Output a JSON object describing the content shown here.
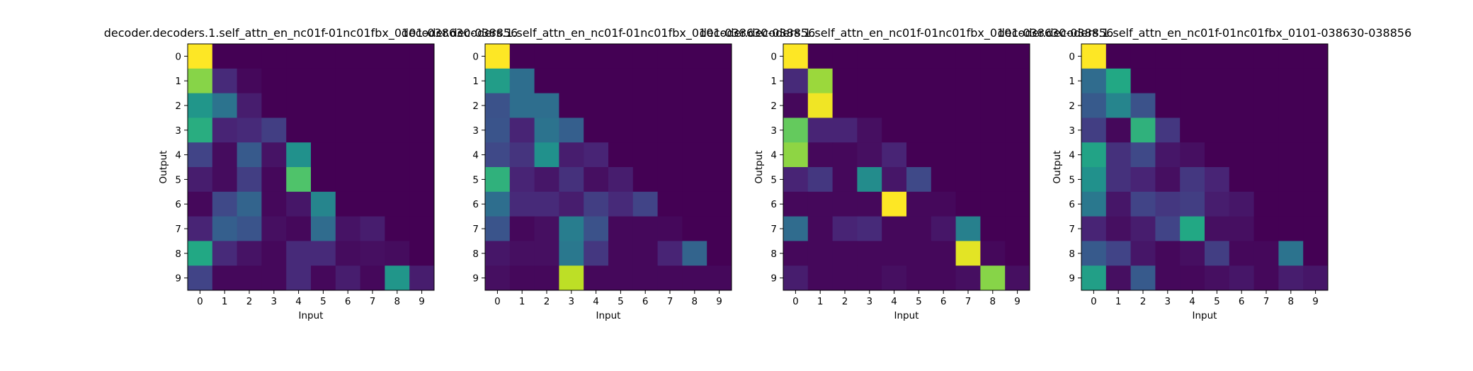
{
  "figure": {
    "background": "#ffffff",
    "colormap": "viridis"
  },
  "chart_data": [
    {
      "type": "heatmap",
      "title": "decoder.decoders.1.self_attn_en_nc01f-01nc01fbx_0101-038630-038856",
      "xlabel": "Input",
      "ylabel": "Output",
      "x_ticks": [
        "0",
        "1",
        "2",
        "3",
        "4",
        "5",
        "6",
        "7",
        "8",
        "9"
      ],
      "y_ticks": [
        "0",
        "1",
        "2",
        "3",
        "4",
        "5",
        "6",
        "7",
        "8",
        "9"
      ],
      "vmin": 0,
      "vmax": 1,
      "values": [
        [
          1.0,
          0,
          0,
          0,
          0,
          0,
          0,
          0,
          0,
          0
        ],
        [
          0.82,
          0.12,
          0.02,
          0,
          0,
          0,
          0,
          0,
          0,
          0
        ],
        [
          0.52,
          0.38,
          0.08,
          0,
          0,
          0,
          0,
          0,
          0,
          0
        ],
        [
          0.62,
          0.1,
          0.12,
          0.18,
          0,
          0,
          0,
          0,
          0,
          0
        ],
        [
          0.2,
          0.03,
          0.28,
          0.05,
          0.5,
          0,
          0,
          0,
          0,
          0
        ],
        [
          0.08,
          0.03,
          0.18,
          0.02,
          0.72,
          0,
          0,
          0,
          0,
          0
        ],
        [
          0.02,
          0.22,
          0.32,
          0.02,
          0.06,
          0.45,
          0,
          0,
          0,
          0
        ],
        [
          0.1,
          0.3,
          0.26,
          0.04,
          0.02,
          0.35,
          0.05,
          0.08,
          0,
          0
        ],
        [
          0.6,
          0.12,
          0.05,
          0.02,
          0.12,
          0.12,
          0.03,
          0.04,
          0.03,
          0
        ],
        [
          0.2,
          0.02,
          0.02,
          0.02,
          0.12,
          0.02,
          0.08,
          0.02,
          0.52,
          0.08
        ]
      ]
    },
    {
      "type": "heatmap",
      "title": "decoder.decoders.1.self_attn_en_nc01f-01nc01fbx_0101-038630-038856",
      "xlabel": "Input",
      "ylabel": "",
      "x_ticks": [
        "0",
        "1",
        "2",
        "3",
        "4",
        "5",
        "6",
        "7",
        "8",
        "9"
      ],
      "y_ticks": [
        "0",
        "1",
        "2",
        "3",
        "4",
        "5",
        "6",
        "7",
        "8",
        "9"
      ],
      "vmin": 0,
      "vmax": 1,
      "values": [
        [
          1.0,
          0,
          0,
          0,
          0,
          0,
          0,
          0,
          0,
          0
        ],
        [
          0.55,
          0.36,
          0,
          0,
          0,
          0,
          0,
          0,
          0,
          0
        ],
        [
          0.25,
          0.36,
          0.36,
          0,
          0,
          0,
          0,
          0,
          0,
          0
        ],
        [
          0.26,
          0.1,
          0.38,
          0.3,
          0,
          0,
          0,
          0,
          0,
          0
        ],
        [
          0.22,
          0.15,
          0.5,
          0.08,
          0.1,
          0,
          0,
          0,
          0,
          0
        ],
        [
          0.64,
          0.1,
          0.06,
          0.14,
          0.04,
          0.08,
          0,
          0,
          0,
          0
        ],
        [
          0.36,
          0.12,
          0.12,
          0.08,
          0.18,
          0.12,
          0.2,
          0,
          0,
          0
        ],
        [
          0.26,
          0.02,
          0.04,
          0.42,
          0.25,
          0.02,
          0.02,
          0.02,
          0,
          0
        ],
        [
          0.06,
          0.04,
          0.04,
          0.4,
          0.16,
          0.02,
          0.02,
          0.1,
          0.32,
          0
        ],
        [
          0.04,
          0.02,
          0.02,
          0.9,
          0.02,
          0.02,
          0.02,
          0.02,
          0.02,
          0.02
        ]
      ]
    },
    {
      "type": "heatmap",
      "title": "decoder.decoders.1.self_attn_en_nc01f-01nc01fbx_0101-038630-038856",
      "xlabel": "Input",
      "ylabel": "Output",
      "x_ticks": [
        "0",
        "1",
        "2",
        "3",
        "4",
        "5",
        "6",
        "7",
        "8",
        "9"
      ],
      "y_ticks": [
        "0",
        "1",
        "2",
        "3",
        "4",
        "5",
        "6",
        "7",
        "8",
        "9"
      ],
      "vmin": 0,
      "vmax": 1,
      "values": [
        [
          1.0,
          0,
          0,
          0,
          0,
          0,
          0,
          0,
          0,
          0
        ],
        [
          0.12,
          0.85,
          0,
          0,
          0,
          0,
          0,
          0,
          0,
          0
        ],
        [
          0.02,
          0.98,
          0,
          0,
          0,
          0,
          0,
          0,
          0,
          0
        ],
        [
          0.76,
          0.1,
          0.1,
          0.04,
          0,
          0,
          0,
          0,
          0,
          0
        ],
        [
          0.83,
          0.02,
          0.02,
          0.04,
          0.1,
          0,
          0,
          0,
          0,
          0
        ],
        [
          0.1,
          0.16,
          0.02,
          0.48,
          0.06,
          0.22,
          0,
          0,
          0,
          0
        ],
        [
          0.02,
          0.02,
          0.02,
          0.02,
          1.0,
          0.02,
          0.02,
          0,
          0,
          0
        ],
        [
          0.35,
          0.02,
          0.1,
          0.12,
          0.02,
          0.02,
          0.06,
          0.43,
          0,
          0
        ],
        [
          0.02,
          0.02,
          0.02,
          0.02,
          0.02,
          0.02,
          0.02,
          0.96,
          0.02,
          0
        ],
        [
          0.08,
          0.02,
          0.02,
          0.02,
          0.04,
          0.02,
          0.02,
          0.04,
          0.82,
          0.04
        ]
      ]
    },
    {
      "type": "heatmap",
      "title": "decoder.decoders.1.self_attn_en_nc01f-01nc01fbx_0101-038630-038856",
      "xlabel": "Input",
      "ylabel": "Output",
      "x_ticks": [
        "0",
        "1",
        "2",
        "3",
        "4",
        "5",
        "6",
        "7",
        "8",
        "9"
      ],
      "y_ticks": [
        "0",
        "1",
        "2",
        "3",
        "4",
        "5",
        "6",
        "7",
        "8",
        "9"
      ],
      "vmin": 0,
      "vmax": 1,
      "values": [
        [
          1.0,
          0,
          0,
          0,
          0,
          0,
          0,
          0,
          0,
          0
        ],
        [
          0.35,
          0.6,
          0,
          0,
          0,
          0,
          0,
          0,
          0,
          0
        ],
        [
          0.28,
          0.45,
          0.25,
          0,
          0,
          0,
          0,
          0,
          0,
          0
        ],
        [
          0.18,
          0.02,
          0.64,
          0.16,
          0,
          0,
          0,
          0,
          0,
          0
        ],
        [
          0.58,
          0.14,
          0.22,
          0.06,
          0.04,
          0,
          0,
          0,
          0,
          0
        ],
        [
          0.5,
          0.14,
          0.1,
          0.04,
          0.16,
          0.1,
          0,
          0,
          0,
          0
        ],
        [
          0.4,
          0.06,
          0.2,
          0.16,
          0.18,
          0.08,
          0.06,
          0,
          0,
          0
        ],
        [
          0.1,
          0.04,
          0.08,
          0.2,
          0.6,
          0.04,
          0.04,
          0,
          0,
          0
        ],
        [
          0.28,
          0.2,
          0.06,
          0.02,
          0.04,
          0.18,
          0.02,
          0.02,
          0.38,
          0
        ],
        [
          0.56,
          0.04,
          0.28,
          0.02,
          0.02,
          0.04,
          0.06,
          0.02,
          0.08,
          0.06
        ]
      ]
    }
  ]
}
